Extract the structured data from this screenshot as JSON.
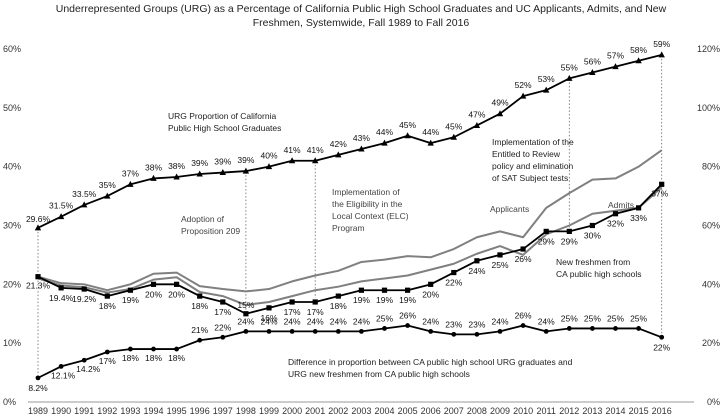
{
  "chart_data": {
    "type": "line",
    "title_lines": [
      "Underrepresented Groups (URG) as a Percentage of California Public High School Graduates and UC Applicants, Admits, and New",
      "Freshmen, Systemwide, Fall 1989 to Fall 2016"
    ],
    "x": [
      "1989",
      "1990",
      "1991",
      "1992",
      "1993",
      "1994",
      "1995",
      "1996",
      "1997",
      "1998",
      "1999",
      "2000",
      "2001",
      "2002",
      "2003",
      "2004",
      "2005",
      "2006",
      "2007",
      "2008",
      "2009",
      "2010",
      "2011",
      "2012",
      "2013",
      "2014",
      "2015",
      "2016"
    ],
    "y_left": {
      "ylim": [
        0,
        60
      ],
      "ticks": [
        "0%",
        "10%",
        "20%",
        "30%",
        "40%",
        "50%",
        "60%"
      ]
    },
    "y_right": {
      "ylim": [
        0,
        120
      ],
      "ticks": [
        "0%",
        "20%",
        "40%",
        "60%",
        "80%",
        "100%",
        "120%"
      ]
    },
    "series": [
      {
        "key": "hs_grads",
        "axis": "right",
        "color": "#000000",
        "values": [
          59.2,
          63,
          67,
          70,
          74,
          76,
          76.5,
          77.5,
          78,
          78.5,
          80,
          82,
          82,
          84,
          86,
          88,
          90.5,
          88,
          90,
          94,
          98,
          104,
          106,
          110,
          112,
          114,
          116,
          118
        ],
        "labels": [
          "29.6%",
          "31.5%",
          "33.5%",
          "35%",
          "37%",
          "38%",
          "38%",
          "39%",
          "39%",
          "39%",
          "40%",
          "41%",
          "41%",
          "42%",
          "43%",
          "44%",
          "45%",
          "44%",
          "45%",
          "47%",
          "49%",
          "52%",
          "53%",
          "55%",
          "56%",
          "57%",
          "58%",
          "59%"
        ]
      },
      {
        "key": "applicants",
        "color": "#808080",
        "values": [
          21.3,
          20.2,
          20,
          19,
          20,
          21.8,
          22,
          19.7,
          19.2,
          18.8,
          19.2,
          20.5,
          21.5,
          22.3,
          23.8,
          24.2,
          24.8,
          24.6,
          26,
          28,
          29,
          28,
          33,
          35.5,
          37.8,
          38,
          40,
          42.8
        ]
      },
      {
        "key": "admits",
        "color": "#808080",
        "values": [
          21,
          19.8,
          19.5,
          18.6,
          19.2,
          20.8,
          21.2,
          18.7,
          18,
          16.5,
          17,
          18,
          19,
          19.6,
          20.5,
          21,
          21.5,
          22.5,
          23.5,
          25.2,
          26.5,
          25,
          28.5,
          30,
          32,
          32.5,
          33,
          36.5
        ]
      },
      {
        "key": "new_freshmen",
        "color": "#000000",
        "values": [
          21.3,
          19.4,
          19.2,
          18,
          19,
          20,
          20,
          18,
          17,
          15,
          16,
          17,
          17,
          18,
          19,
          19,
          19,
          20,
          22,
          24,
          25,
          26,
          29,
          29,
          30,
          32,
          33,
          37
        ],
        "labels": [
          "21.3%",
          "19.4%",
          "19.2%",
          "18%",
          "19%",
          "20%",
          "20%",
          "18%",
          "17%",
          "15%",
          "16%",
          "17%",
          "17%",
          "18%",
          "19%",
          "19%",
          "19%",
          "20%",
          "22%",
          "24%",
          "25%",
          "26%",
          "29%",
          "29%",
          "30%",
          "32%",
          "33%",
          "37%"
        ]
      },
      {
        "key": "difference",
        "axis": "right",
        "color": "#000000",
        "values": [
          8.2,
          12.1,
          14.2,
          17,
          18,
          18,
          18,
          21,
          22,
          24,
          24,
          24,
          24,
          24,
          24,
          25,
          26,
          24,
          23,
          23,
          24,
          26,
          24,
          25,
          25,
          25,
          25,
          22
        ],
        "labels": [
          "8.2%",
          "12.1%",
          "14.2%",
          "17%",
          "18%",
          "18%",
          "18%",
          "21%",
          "22%",
          "24%",
          "24%",
          "24%",
          "24%",
          "24%",
          "24%",
          "25%",
          "26%",
          "24%",
          "23%",
          "23%",
          "24%",
          "26%",
          "24%",
          "25%",
          "25%",
          "25%",
          "25%",
          "22%"
        ]
      }
    ],
    "annotations": {
      "hs_grads": [
        "URG Proportion of California",
        "Public High School Graduates"
      ],
      "prop209": [
        "Adoption of",
        "Proposition 209"
      ],
      "elc": [
        "Implementation of",
        "the Eligibility in the",
        "Local Context (ELC)",
        "Program"
      ],
      "etr": [
        "Implementation of the",
        "Entitled to Review",
        "policy and elimination",
        "of SAT Subject tests"
      ],
      "applicants": "Applicants",
      "admits": "Admits",
      "new_freshmen": [
        "New freshmen from",
        "CA public high schools"
      ],
      "difference": [
        "Difference in proportion between CA public high school URG graduates and",
        "URG new freshmen from CA public high schools"
      ]
    },
    "grid": false
  }
}
